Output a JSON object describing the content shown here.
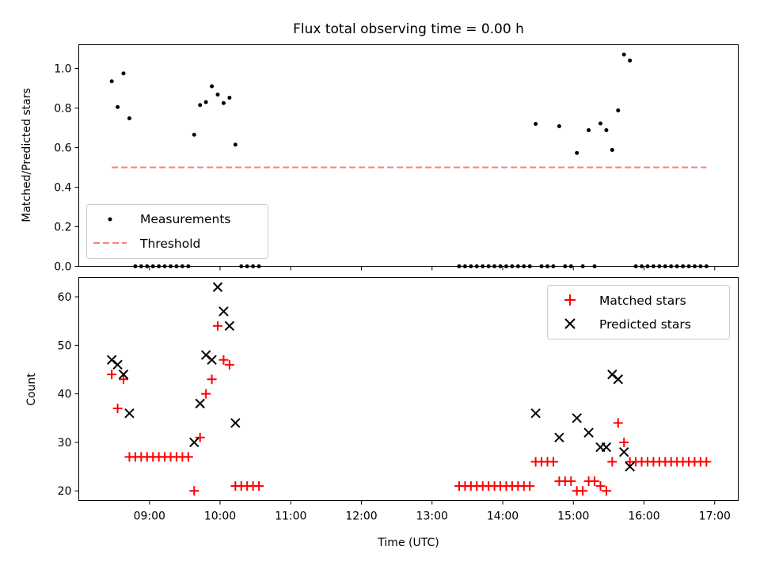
{
  "chart_data": [
    {
      "type": "scatter",
      "title": "Flux total observing time = 0.00 h",
      "ylabel": "Matched/Predicted stars",
      "xlabel": "",
      "ylim": [
        0,
        1.12
      ],
      "yticks": [
        0.0,
        0.2,
        0.4,
        0.6,
        0.8,
        1.0
      ],
      "ytick_labels": [
        "0.0",
        "0.2",
        "0.4",
        "0.6",
        "0.8",
        "1.0"
      ],
      "grid": false,
      "legend": {
        "placement": "bottom-left",
        "entries": [
          "Measurements",
          "Threshold"
        ]
      },
      "colors": {
        "measurements": "#000000",
        "threshold": "#ff7f7f"
      },
      "series": [
        {
          "name": "Measurements",
          "points": [
            [
              "08:28",
              0.935
            ],
            [
              "08:33",
              0.805
            ],
            [
              "08:38",
              0.975
            ],
            [
              "08:43",
              0.748
            ],
            [
              "08:48",
              0.0
            ],
            [
              "08:53",
              0.0
            ],
            [
              "08:58",
              0.0
            ],
            [
              "09:03",
              0.0
            ],
            [
              "09:08",
              0.0
            ],
            [
              "09:13",
              0.0
            ],
            [
              "09:18",
              0.0
            ],
            [
              "09:23",
              0.0
            ],
            [
              "09:28",
              0.0
            ],
            [
              "09:33",
              0.0
            ],
            [
              "09:38",
              0.665
            ],
            [
              "09:43",
              0.815
            ],
            [
              "09:48",
              0.83
            ],
            [
              "09:53",
              0.91
            ],
            [
              "09:58",
              0.868
            ],
            [
              "10:03",
              0.825
            ],
            [
              "10:08",
              0.852
            ],
            [
              "10:13",
              0.615
            ],
            [
              "10:18",
              0.0
            ],
            [
              "10:23",
              0.0
            ],
            [
              "10:28",
              0.0
            ],
            [
              "10:33",
              0.0
            ],
            [
              "13:23",
              0.0
            ],
            [
              "13:28",
              0.0
            ],
            [
              "13:33",
              0.0
            ],
            [
              "13:38",
              0.0
            ],
            [
              "13:43",
              0.0
            ],
            [
              "13:48",
              0.0
            ],
            [
              "13:53",
              0.0
            ],
            [
              "13:58",
              0.0
            ],
            [
              "14:03",
              0.0
            ],
            [
              "14:08",
              0.0
            ],
            [
              "14:13",
              0.0
            ],
            [
              "14:18",
              0.0
            ],
            [
              "14:23",
              0.0
            ],
            [
              "14:28",
              0.72
            ],
            [
              "14:33",
              0.0
            ],
            [
              "14:38",
              0.0
            ],
            [
              "14:43",
              0.0
            ],
            [
              "14:48",
              0.708
            ],
            [
              "14:53",
              0.0
            ],
            [
              "14:58",
              0.0
            ],
            [
              "15:03",
              0.573
            ],
            [
              "15:08",
              0.0
            ],
            [
              "15:13",
              0.688
            ],
            [
              "15:18",
              0.0
            ],
            [
              "15:23",
              0.722
            ],
            [
              "15:28",
              0.688
            ],
            [
              "15:33",
              0.588
            ],
            [
              "15:38",
              0.788
            ],
            [
              "15:43",
              1.07
            ],
            [
              "15:48",
              1.04
            ],
            [
              "15:53",
              0.0
            ],
            [
              "15:58",
              0.0
            ],
            [
              "16:03",
              0.0
            ],
            [
              "16:08",
              0.0
            ],
            [
              "16:13",
              0.0
            ],
            [
              "16:18",
              0.0
            ],
            [
              "16:23",
              0.0
            ],
            [
              "16:28",
              0.0
            ],
            [
              "16:33",
              0.0
            ],
            [
              "16:38",
              0.0
            ],
            [
              "16:43",
              0.0
            ],
            [
              "16:48",
              0.0
            ],
            [
              "16:53",
              0.0
            ]
          ]
        },
        {
          "name": "Threshold",
          "points": [
            [
              "08:28",
              0.5
            ],
            [
              "16:53",
              0.5
            ]
          ]
        }
      ]
    },
    {
      "type": "scatter",
      "title": "",
      "xlabel": "Time (UTC)",
      "ylabel": "Count",
      "ylim": [
        18,
        64
      ],
      "xlim": [
        "08:00",
        "17:20"
      ],
      "yticks": [
        20,
        30,
        40,
        50,
        60
      ],
      "ytick_labels": [
        "20",
        "30",
        "40",
        "50",
        "60"
      ],
      "xticks": [
        "09:00",
        "10:00",
        "11:00",
        "12:00",
        "13:00",
        "14:00",
        "15:00",
        "16:00",
        "17:00"
      ],
      "grid": false,
      "legend": {
        "placement": "top-right",
        "entries": [
          "Matched stars",
          "Predicted stars"
        ]
      },
      "colors": {
        "matched": "#ff0000",
        "predicted": "#000000"
      },
      "series": [
        {
          "name": "Matched stars",
          "points": [
            [
              "08:28",
              44
            ],
            [
              "08:33",
              37
            ],
            [
              "08:38",
              43
            ],
            [
              "08:43",
              27
            ],
            [
              "08:48",
              27
            ],
            [
              "08:53",
              27
            ],
            [
              "08:58",
              27
            ],
            [
              "09:03",
              27
            ],
            [
              "09:08",
              27
            ],
            [
              "09:13",
              27
            ],
            [
              "09:18",
              27
            ],
            [
              "09:23",
              27
            ],
            [
              "09:28",
              27
            ],
            [
              "09:33",
              27
            ],
            [
              "09:38",
              20
            ],
            [
              "09:43",
              31
            ],
            [
              "09:48",
              40
            ],
            [
              "09:53",
              43
            ],
            [
              "09:58",
              54
            ],
            [
              "10:03",
              47
            ],
            [
              "10:08",
              46
            ],
            [
              "10:13",
              21
            ],
            [
              "10:18",
              21
            ],
            [
              "10:23",
              21
            ],
            [
              "10:28",
              21
            ],
            [
              "10:33",
              21
            ],
            [
              "13:23",
              21
            ],
            [
              "13:28",
              21
            ],
            [
              "13:33",
              21
            ],
            [
              "13:38",
              21
            ],
            [
              "13:43",
              21
            ],
            [
              "13:48",
              21
            ],
            [
              "13:53",
              21
            ],
            [
              "13:58",
              21
            ],
            [
              "14:03",
              21
            ],
            [
              "14:08",
              21
            ],
            [
              "14:13",
              21
            ],
            [
              "14:18",
              21
            ],
            [
              "14:23",
              21
            ],
            [
              "14:28",
              26
            ],
            [
              "14:33",
              26
            ],
            [
              "14:38",
              26
            ],
            [
              "14:43",
              26
            ],
            [
              "14:48",
              22
            ],
            [
              "14:53",
              22
            ],
            [
              "14:58",
              22
            ],
            [
              "15:03",
              20
            ],
            [
              "15:08",
              20
            ],
            [
              "15:13",
              22
            ],
            [
              "15:18",
              22
            ],
            [
              "15:23",
              21
            ],
            [
              "15:28",
              20
            ],
            [
              "15:33",
              26
            ],
            [
              "15:38",
              34
            ],
            [
              "15:43",
              30
            ],
            [
              "15:48",
              26
            ],
            [
              "15:53",
              26
            ],
            [
              "15:58",
              26
            ],
            [
              "16:03",
              26
            ],
            [
              "16:08",
              26
            ],
            [
              "16:13",
              26
            ],
            [
              "16:18",
              26
            ],
            [
              "16:23",
              26
            ],
            [
              "16:28",
              26
            ],
            [
              "16:33",
              26
            ],
            [
              "16:38",
              26
            ],
            [
              "16:43",
              26
            ],
            [
              "16:48",
              26
            ],
            [
              "16:53",
              26
            ]
          ]
        },
        {
          "name": "Predicted stars",
          "points": [
            [
              "08:28",
              47
            ],
            [
              "08:33",
              46
            ],
            [
              "08:38",
              44
            ],
            [
              "08:43",
              36
            ],
            [
              "09:38",
              30
            ],
            [
              "09:43",
              38
            ],
            [
              "09:48",
              48
            ],
            [
              "09:53",
              47
            ],
            [
              "09:58",
              62
            ],
            [
              "10:03",
              57
            ],
            [
              "10:08",
              54
            ],
            [
              "10:13",
              34
            ],
            [
              "14:28",
              36
            ],
            [
              "14:48",
              31
            ],
            [
              "15:03",
              35
            ],
            [
              "15:13",
              32
            ],
            [
              "15:23",
              29
            ],
            [
              "15:28",
              29
            ],
            [
              "15:33",
              44
            ],
            [
              "15:38",
              43
            ],
            [
              "15:43",
              28
            ],
            [
              "15:48",
              25
            ]
          ]
        }
      ]
    }
  ]
}
